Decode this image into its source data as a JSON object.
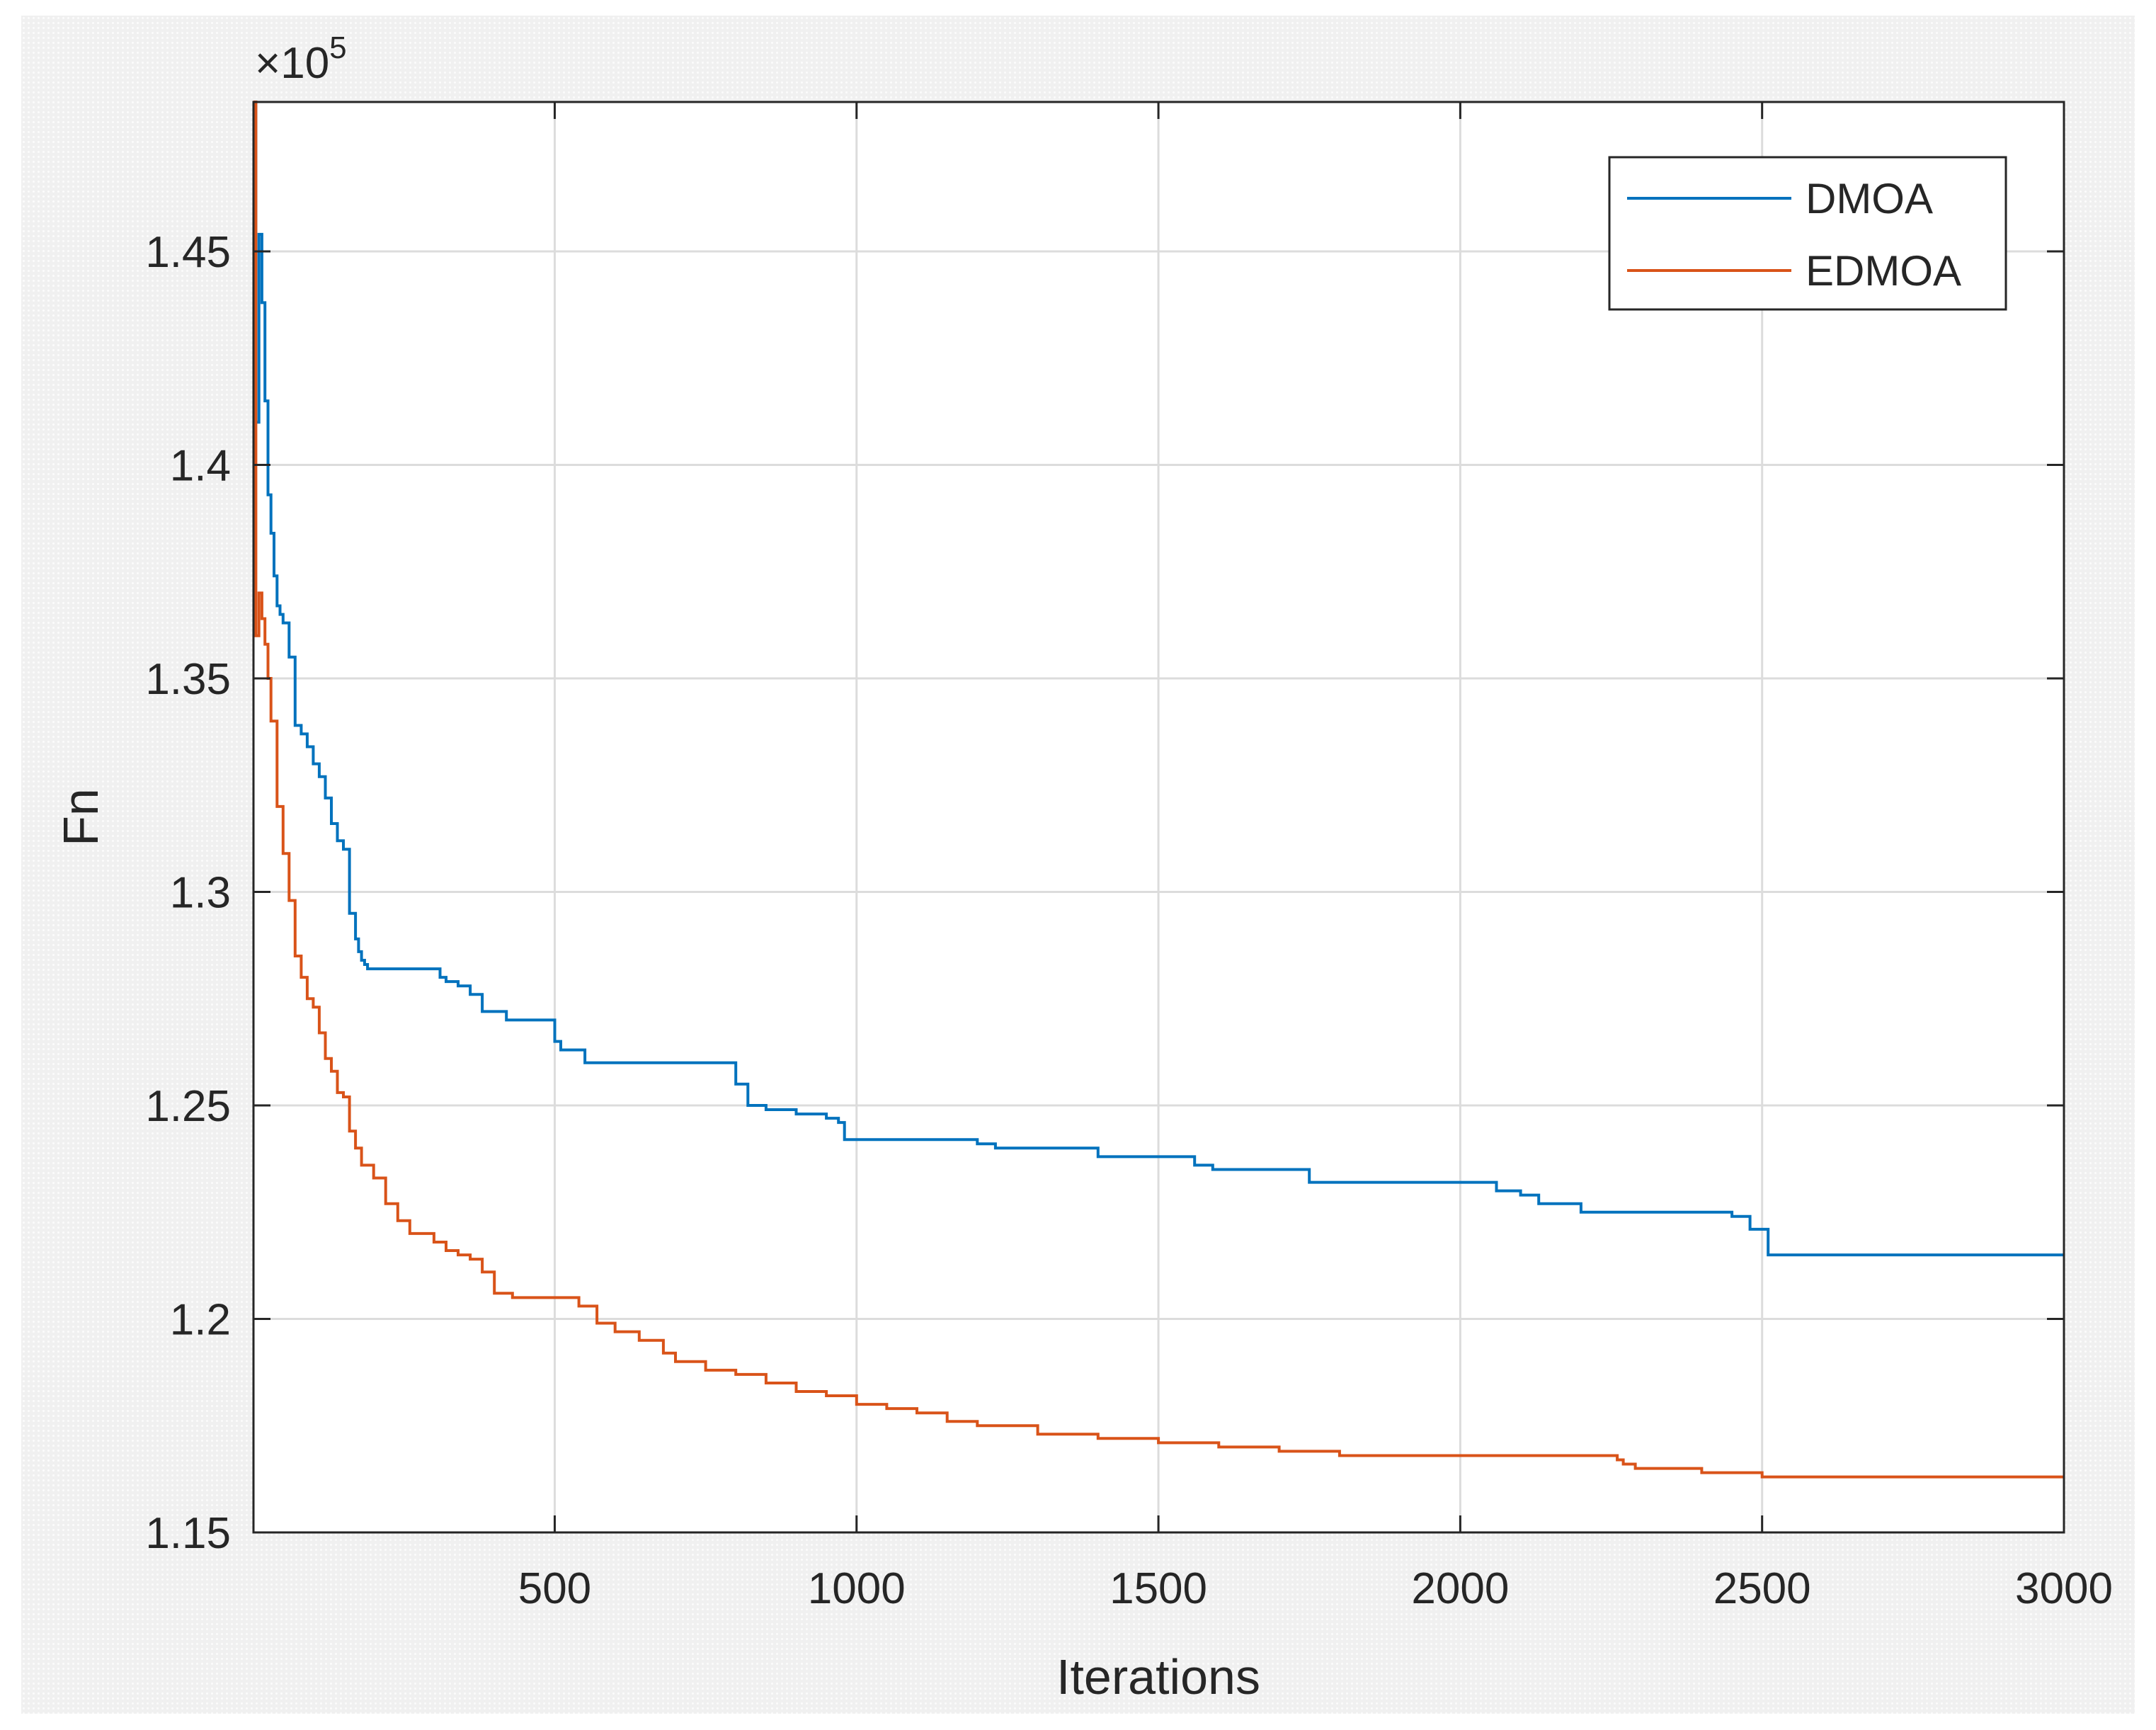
{
  "chart_data": {
    "type": "line",
    "title": "",
    "xlabel": "Iterations",
    "ylabel": "Fn",
    "y_exponent_label": "×10",
    "y_exponent_power": "5",
    "xlim": [
      1,
      3000
    ],
    "ylim": [
      115000,
      148500
    ],
    "x_ticks": [
      500,
      1000,
      1500,
      2000,
      2500,
      3000
    ],
    "x_tick_labels": [
      "500",
      "1000",
      "1500",
      "2000",
      "2500",
      "3000"
    ],
    "y_ticks": [
      115000,
      120000,
      125000,
      130000,
      135000,
      140000,
      145000
    ],
    "y_tick_labels": [
      "1.15",
      "1.2",
      "1.25",
      "1.3",
      "1.35",
      "1.4",
      "1.45"
    ],
    "grid": true,
    "legend_position": "top-right",
    "series": [
      {
        "name": "DMOA",
        "color": "#0072BD",
        "x": [
          1,
          5,
          10,
          15,
          20,
          25,
          30,
          35,
          40,
          45,
          50,
          60,
          70,
          80,
          90,
          100,
          110,
          120,
          130,
          140,
          150,
          160,
          170,
          175,
          180,
          185,
          190,
          200,
          250,
          310,
          320,
          340,
          360,
          380,
          420,
          500,
          510,
          550,
          600,
          700,
          780,
          800,
          820,
          850,
          900,
          950,
          970,
          980,
          1000,
          1100,
          1200,
          1230,
          1300,
          1400,
          1450,
          1500,
          1560,
          1590,
          1700,
          1750,
          1800,
          1900,
          2000,
          2060,
          2100,
          2130,
          2200,
          2300,
          2400,
          2450,
          2480,
          2510,
          2600,
          2800,
          3000
        ],
        "values": [
          148500,
          141000,
          145400,
          143800,
          141500,
          139300,
          138400,
          137400,
          136700,
          136500,
          136300,
          135500,
          133900,
          133700,
          133400,
          133000,
          132700,
          132200,
          131600,
          131200,
          131000,
          129500,
          128900,
          128600,
          128400,
          128300,
          128200,
          128200,
          128200,
          128000,
          127900,
          127800,
          127600,
          127200,
          127000,
          126500,
          126300,
          126000,
          126000,
          126000,
          126000,
          125500,
          125000,
          124900,
          124800,
          124700,
          124600,
          124200,
          124200,
          124200,
          124100,
          124000,
          124000,
          123800,
          123800,
          123800,
          123600,
          123500,
          123500,
          123200,
          123200,
          123200,
          123200,
          123000,
          122900,
          122700,
          122500,
          122500,
          122500,
          122400,
          122100,
          121500,
          121500,
          121500,
          121500
        ]
      },
      {
        "name": "EDMOA",
        "color": "#D95319",
        "x": [
          1,
          5,
          10,
          15,
          20,
          25,
          30,
          40,
          50,
          60,
          70,
          80,
          90,
          100,
          110,
          120,
          130,
          140,
          150,
          160,
          170,
          180,
          200,
          220,
          240,
          260,
          280,
          300,
          320,
          340,
          360,
          380,
          400,
          430,
          500,
          540,
          570,
          600,
          640,
          680,
          700,
          750,
          800,
          850,
          900,
          950,
          1000,
          1050,
          1100,
          1150,
          1200,
          1300,
          1400,
          1500,
          1600,
          1700,
          1800,
          1900,
          2000,
          2100,
          2200,
          2260,
          2270,
          2290,
          2300,
          2400,
          2450,
          2500,
          2600,
          3000
        ],
        "values": [
          148500,
          136000,
          137000,
          136400,
          135800,
          135000,
          134000,
          132000,
          130900,
          129800,
          128500,
          128000,
          127500,
          127300,
          126700,
          126100,
          125800,
          125300,
          125200,
          124400,
          124000,
          123600,
          123300,
          122700,
          122300,
          122000,
          122000,
          121800,
          121600,
          121500,
          121400,
          121100,
          120600,
          120500,
          120500,
          120300,
          119900,
          119700,
          119500,
          119200,
          119000,
          118800,
          118700,
          118500,
          118300,
          118200,
          118000,
          117900,
          117800,
          117600,
          117500,
          117300,
          117200,
          117100,
          117000,
          116900,
          116800,
          116800,
          116800,
          116800,
          116800,
          116700,
          116600,
          116500,
          116500,
          116400,
          116400,
          116300,
          116300,
          116300
        ]
      }
    ]
  }
}
